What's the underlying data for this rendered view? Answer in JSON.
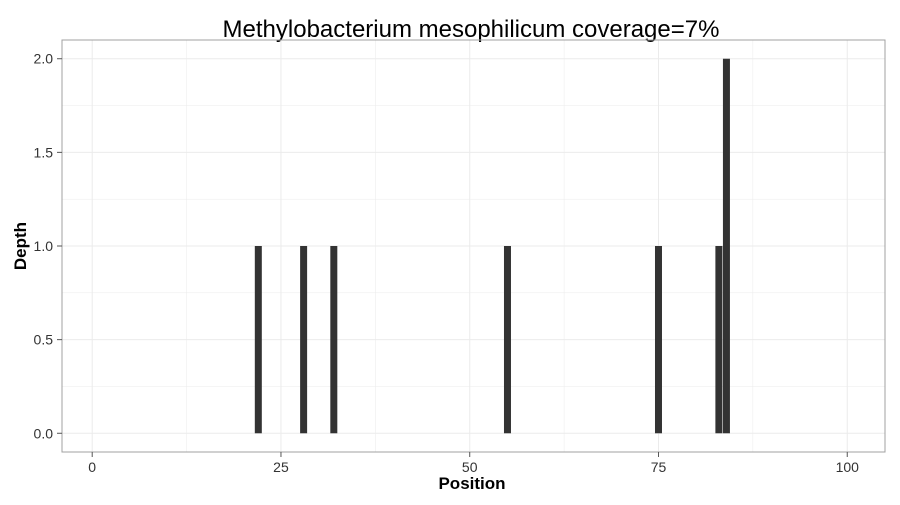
{
  "chart_data": {
    "type": "bar",
    "title": "Methylobacterium mesophilicum coverage=7%",
    "xlabel": "Position",
    "ylabel": "Depth",
    "xlim": [
      -4,
      105
    ],
    "ylim": [
      -0.1,
      2.1
    ],
    "x_ticks": [
      0,
      25,
      50,
      75,
      100
    ],
    "x_tick_labels": [
      "0",
      "25",
      "50",
      "75",
      "100"
    ],
    "y_ticks": [
      0,
      0.5,
      1,
      1.5,
      2
    ],
    "y_tick_labels": [
      "0.0",
      "0.5",
      "1.0",
      "1.5",
      "2.0"
    ],
    "grid": true,
    "legend": "none",
    "bar_color": "#333333",
    "grid_color": "#ebebeb",
    "panel_border_color": "#a0a0a0",
    "x": [
      22,
      28,
      32,
      55,
      75,
      83,
      84
    ],
    "values": [
      1,
      1,
      1,
      1,
      1,
      1,
      2
    ]
  }
}
